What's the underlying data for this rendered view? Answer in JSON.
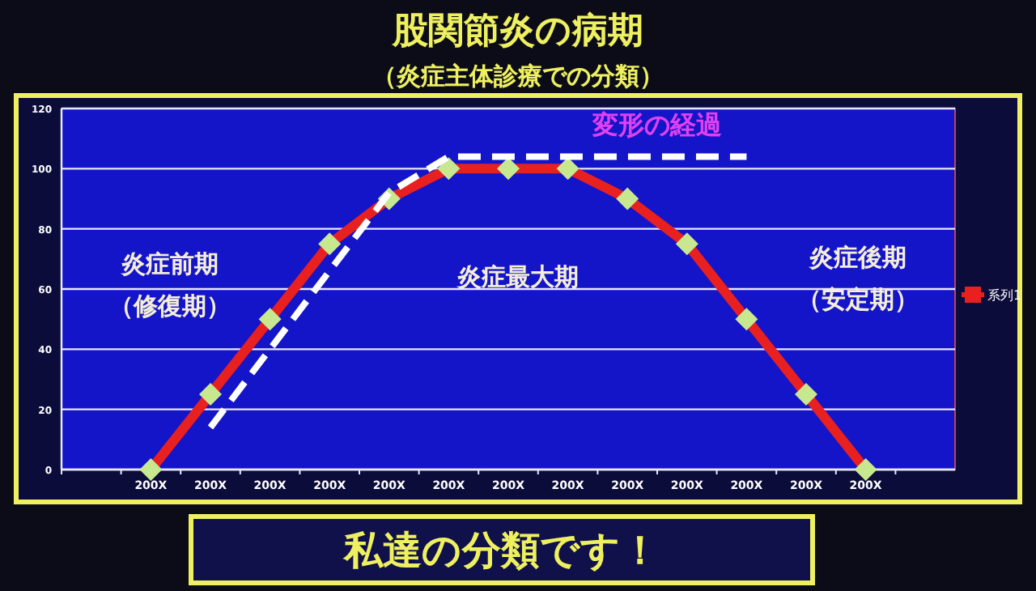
{
  "chart_data": {
    "type": "line",
    "title": "股関節炎の病期",
    "subtitle": "（炎症主体診療での分類）",
    "categories": [
      null,
      "200X",
      "200X",
      "200X",
      "200X",
      "200X",
      "200X",
      "200X",
      "200X",
      "200X",
      "200X",
      "200X",
      "200X",
      "200X",
      null
    ],
    "ylim": [
      0,
      120
    ],
    "yticks": [
      0,
      20,
      40,
      60,
      80,
      100,
      120
    ],
    "grid": "y",
    "legend": "right",
    "series": [
      {
        "name": "系列1",
        "color": "#e82020",
        "marker": "diamond",
        "line_style": "solid",
        "values": [
          null,
          0,
          25,
          50,
          75,
          90,
          100,
          100,
          100,
          90,
          75,
          50,
          25,
          0,
          null
        ]
      },
      {
        "name": "変形の経過",
        "color": "#ffffff",
        "marker": "none",
        "line_style": "dashed",
        "values": [
          null,
          null,
          14,
          40,
          66,
          92,
          104,
          104,
          104,
          104,
          104,
          104,
          null,
          null,
          null
        ]
      }
    ],
    "annotations": [
      "炎症前期",
      "（修復期）",
      "炎症最大期",
      "炎症後期",
      "（安定期）",
      "私達の分類です！"
    ]
  }
}
